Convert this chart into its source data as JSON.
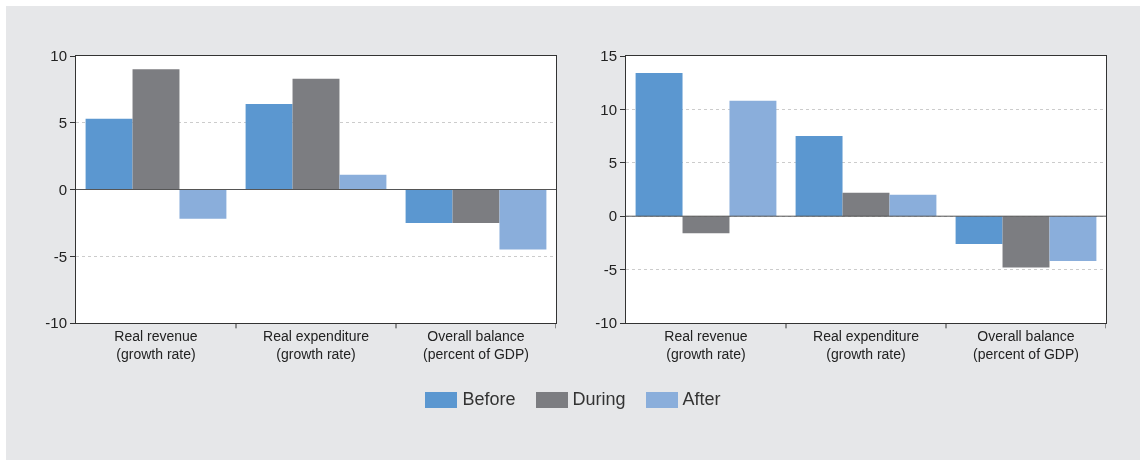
{
  "chart_data": [
    {
      "type": "bar",
      "categories": [
        "Real revenue\n(growth rate)",
        "Real expenditure\n(growth rate)",
        "Overall balance\n(percent of GDP)"
      ],
      "series": [
        {
          "name": "Before",
          "color": "#5b97d0",
          "values": [
            5.3,
            6.4,
            -2.5
          ]
        },
        {
          "name": "During",
          "color": "#7c7d81",
          "values": [
            9.0,
            8.3,
            -2.5
          ]
        },
        {
          "name": "After",
          "color": "#8aaedb",
          "values": [
            -2.2,
            1.1,
            -4.5
          ]
        }
      ],
      "ylim": [
        -10,
        10
      ],
      "yticks": [
        -10,
        -5,
        0,
        5,
        10
      ],
      "grid": "y",
      "legend": "bottom"
    },
    {
      "type": "bar",
      "categories": [
        "Real revenue\n(growth rate)",
        "Real expenditure\n(growth rate)",
        "Overall balance\n(percent of GDP)"
      ],
      "series": [
        {
          "color": "#5b97d0",
          "values": [
            13.4,
            7.5,
            -2.6
          ]
        },
        {
          "color": "#7c7d81",
          "values": [
            -1.6,
            2.2,
            -4.8
          ]
        },
        {
          "color": "#8aaedb",
          "values": [
            10.8,
            2.0,
            -4.2
          ]
        }
      ],
      "ylim": [
        -10,
        15
      ],
      "yticks": [
        -10,
        -5,
        0,
        5,
        10,
        15
      ],
      "grid": "y"
    }
  ]
}
